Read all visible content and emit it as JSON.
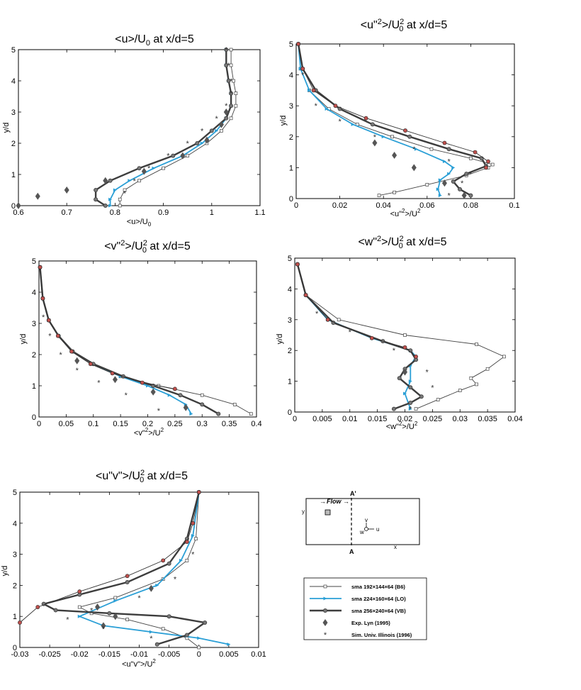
{
  "legend": {
    "entries": [
      {
        "name": "sma 192×144×64 (B6)",
        "series": "B6"
      },
      {
        "name": "sma 224×160×64 (LO)",
        "series": "LO"
      },
      {
        "name": "sma 256×240×64 (VB)",
        "series": "VB"
      },
      {
        "name": "Exp. Lyn (1995)",
        "series": "Lyn"
      },
      {
        "name": "Sim. Univ. Illinois (1996)",
        "series": "UIUC"
      }
    ]
  },
  "schematic": {
    "label_a_top": "A'",
    "label_a_bottom": "A",
    "flow_label": "Flow",
    "label_x": "x",
    "label_y": "y",
    "label_u": "u",
    "label_v": "v",
    "label_w": "w"
  },
  "colors": {
    "B6": "#444444",
    "LO": "#2a9fd6",
    "VB": "#3d3d3d",
    "Lyn": "#555555",
    "UIUC": "#333333",
    "red_marker": "#c0504d"
  },
  "chart_data": [
    {
      "id": "u_mean",
      "type": "line",
      "title": "<u>/U0 at x/d=5",
      "xlabel": "<u>/U0",
      "ylabel": "y/d",
      "xlim": [
        0.6,
        1.1
      ],
      "ylim": [
        0,
        5
      ],
      "xticks": [
        0.6,
        0.7,
        0.8,
        0.9,
        1,
        1.1
      ],
      "xtick_labels": [
        "0.6",
        "0.7",
        "0.8",
        "0.9",
        "1",
        "1.1"
      ],
      "yticks": [
        0,
        1,
        2,
        3,
        4,
        5
      ],
      "series": [
        {
          "key": "B6",
          "x": [
            0.81,
            0.81,
            0.82,
            0.85,
            0.9,
            0.95,
            0.99,
            1.02,
            1.04,
            1.05,
            1.05,
            1.045,
            1.04,
            1.04
          ],
          "y": [
            0,
            0.2,
            0.5,
            0.8,
            1.2,
            1.6,
            2.0,
            2.4,
            2.8,
            3.2,
            3.6,
            4.0,
            4.5,
            5.0
          ]
        },
        {
          "key": "LO",
          "x": [
            0.79,
            0.79,
            0.8,
            0.83,
            0.88,
            0.94,
            0.98,
            1.01,
            1.03,
            1.04,
            1.04,
            1.035,
            1.03,
            1.03
          ],
          "y": [
            0,
            0.2,
            0.5,
            0.8,
            1.2,
            1.6,
            2.0,
            2.4,
            2.8,
            3.2,
            3.6,
            4.0,
            4.5,
            5.0
          ]
        },
        {
          "key": "VB",
          "x": [
            0.78,
            0.76,
            0.76,
            0.79,
            0.85,
            0.92,
            0.97,
            1.0,
            1.03,
            1.04,
            1.04,
            1.035,
            1.03,
            1.03
          ],
          "y": [
            0,
            0.2,
            0.5,
            0.8,
            1.2,
            1.6,
            2.0,
            2.4,
            2.8,
            3.2,
            3.6,
            4.0,
            4.5,
            5.0
          ]
        },
        {
          "key": "Lyn",
          "x": [
            0.6,
            0.64,
            0.7,
            0.78,
            0.86,
            0.94,
            0.99,
            1.02,
            1.03
          ],
          "y": [
            0,
            0.3,
            0.5,
            0.8,
            1.1,
            1.6,
            2.1,
            2.6,
            3.0
          ]
        },
        {
          "key": "UIUC",
          "x": [
            0.82,
            0.84,
            0.87,
            0.91,
            0.95,
            0.98,
            1.01,
            1.03,
            1.04,
            1.04,
            1.035,
            1.03
          ],
          "y": [
            0.4,
            0.8,
            1.2,
            1.6,
            2.0,
            2.4,
            2.8,
            3.2,
            3.6,
            4.0,
            4.5,
            5.0
          ]
        }
      ]
    },
    {
      "id": "uu",
      "type": "line",
      "title": "<u\"2>/U0^2 at x/d=5",
      "xlabel": "<u\"2>/U^2",
      "ylabel": "y/d",
      "xlim": [
        0,
        0.1
      ],
      "ylim": [
        0,
        5
      ],
      "xticks": [
        0,
        0.02,
        0.04,
        0.06,
        0.08,
        0.1
      ],
      "xtick_labels": [
        "0",
        "0.02",
        "0.04",
        "0.06",
        "0.08",
        "0.1"
      ],
      "yticks": [
        0,
        1,
        2,
        3,
        4,
        5
      ],
      "series": [
        {
          "key": "B6",
          "x": [
            0.038,
            0.045,
            0.06,
            0.078,
            0.088,
            0.09,
            0.08,
            0.062,
            0.044,
            0.028,
            0.015,
            0.006,
            0.002,
            0.001
          ],
          "y": [
            0.1,
            0.2,
            0.45,
            0.75,
            1.0,
            1.1,
            1.3,
            1.6,
            2.0,
            2.4,
            2.9,
            3.5,
            4.2,
            5.0
          ]
        },
        {
          "key": "LO",
          "x": [
            0.066,
            0.065,
            0.066,
            0.07,
            0.072,
            0.068,
            0.055,
            0.04,
            0.026,
            0.014,
            0.006,
            0.002,
            0.001
          ],
          "y": [
            0.1,
            0.3,
            0.6,
            0.8,
            1.0,
            1.2,
            1.6,
            2.0,
            2.4,
            2.9,
            3.5,
            4.2,
            5.0
          ]
        },
        {
          "key": "VB",
          "x": [
            0.08,
            0.075,
            0.072,
            0.078,
            0.087,
            0.085,
            0.07,
            0.052,
            0.035,
            0.02,
            0.009,
            0.003,
            0.001
          ],
          "y": [
            0.1,
            0.3,
            0.55,
            0.8,
            1.05,
            1.3,
            1.6,
            2.0,
            2.4,
            2.9,
            3.5,
            4.2,
            5.0
          ]
        },
        {
          "key": "red",
          "x": [
            0.087,
            0.088,
            0.082,
            0.068,
            0.05,
            0.032,
            0.018,
            0.008,
            0.003,
            0.001
          ],
          "y": [
            1.0,
            1.2,
            1.5,
            1.8,
            2.2,
            2.6,
            3.0,
            3.5,
            4.2,
            5.0
          ]
        },
        {
          "key": "Lyn",
          "x": [
            0.077,
            0.068,
            0.054,
            0.045,
            0.036
          ],
          "y": [
            0.1,
            0.5,
            1.0,
            1.4,
            1.8
          ]
        },
        {
          "key": "UIUC",
          "x": [
            0.07,
            0.076,
            0.08,
            0.07,
            0.054,
            0.036,
            0.02,
            0.009,
            0.003
          ],
          "y": [
            0.1,
            0.5,
            0.8,
            1.2,
            1.6,
            2.0,
            2.5,
            3.0,
            4.0
          ]
        }
      ]
    },
    {
      "id": "vv",
      "type": "line",
      "title": "<v\"2>/U0^2 at x/d=5",
      "xlabel": "<v\"2>/U^2",
      "ylabel": "y/d",
      "xlim": [
        0,
        0.4
      ],
      "ylim": [
        0,
        5
      ],
      "xticks": [
        0,
        0.05,
        0.1,
        0.15,
        0.2,
        0.25,
        0.3,
        0.35,
        0.4
      ],
      "xtick_labels": [
        "0",
        "0.05",
        "0.1",
        "0.15",
        "0.2",
        "0.25",
        "0.3",
        "0.35",
        "0.4"
      ],
      "yticks": [
        0,
        1,
        2,
        3,
        4,
        5
      ],
      "series": [
        {
          "key": "B6",
          "x": [
            0.39,
            0.36,
            0.3,
            0.22,
            0.15,
            0.095,
            0.06,
            0.035,
            0.018,
            0.007,
            0.002
          ],
          "y": [
            0.1,
            0.4,
            0.7,
            1.0,
            1.3,
            1.7,
            2.1,
            2.6,
            3.1,
            3.8,
            4.8
          ]
        },
        {
          "key": "LO",
          "x": [
            0.28,
            0.27,
            0.24,
            0.2,
            0.15,
            0.1,
            0.062,
            0.036,
            0.018,
            0.007,
            0.002
          ],
          "y": [
            0.1,
            0.4,
            0.7,
            1.0,
            1.3,
            1.7,
            2.1,
            2.6,
            3.1,
            3.8,
            4.8
          ]
        },
        {
          "key": "VB",
          "x": [
            0.33,
            0.3,
            0.26,
            0.21,
            0.155,
            0.1,
            0.062,
            0.036,
            0.018,
            0.007,
            0.002
          ],
          "y": [
            0.1,
            0.4,
            0.7,
            1.0,
            1.3,
            1.7,
            2.1,
            2.6,
            3.1,
            3.8,
            4.8
          ]
        },
        {
          "key": "red",
          "x": [
            0.25,
            0.19,
            0.135,
            0.095,
            0.06,
            0.035,
            0.018,
            0.007,
            0.002
          ],
          "y": [
            0.9,
            1.1,
            1.4,
            1.7,
            2.1,
            2.6,
            3.1,
            3.8,
            4.8
          ]
        },
        {
          "key": "Lyn",
          "x": [
            0.27,
            0.21,
            0.14,
            0.07
          ],
          "y": [
            0.3,
            0.8,
            1.2,
            1.8
          ]
        },
        {
          "key": "UIUC",
          "x": [
            0.22,
            0.16,
            0.11,
            0.07,
            0.04,
            0.02,
            0.008
          ],
          "y": [
            0.2,
            0.7,
            1.1,
            1.5,
            2.0,
            2.6,
            3.2
          ]
        }
      ]
    },
    {
      "id": "ww",
      "type": "line",
      "title": "<w\"2>/U0^2 at x/d=5",
      "xlabel": "<w\"2>/U^2",
      "ylabel": "y/d",
      "xlim": [
        0,
        0.04
      ],
      "ylim": [
        0,
        5
      ],
      "xticks": [
        0,
        0.005,
        0.01,
        0.015,
        0.02,
        0.025,
        0.03,
        0.035,
        0.04
      ],
      "xtick_labels": [
        "0",
        "0.005",
        "0.01",
        "0.015",
        "0.02",
        "0.025",
        "0.03",
        "0.035",
        "0.04"
      ],
      "yticks": [
        0,
        1,
        2,
        3,
        4,
        5
      ],
      "series": [
        {
          "key": "B6",
          "x": [
            0.022,
            0.026,
            0.03,
            0.033,
            0.032,
            0.035,
            0.038,
            0.033,
            0.02,
            0.008,
            0.002,
            0.0005
          ],
          "y": [
            0.1,
            0.4,
            0.7,
            0.9,
            1.1,
            1.4,
            1.8,
            2.2,
            2.5,
            3.0,
            3.8,
            4.8
          ]
        },
        {
          "key": "LO",
          "x": [
            0.021,
            0.02,
            0.021,
            0.021,
            0.022,
            0.021,
            0.014,
            0.006,
            0.002,
            0.0005
          ],
          "y": [
            0.1,
            0.6,
            1.0,
            1.5,
            1.8,
            2.0,
            2.4,
            3.0,
            3.8,
            4.8
          ]
        },
        {
          "key": "VB",
          "x": [
            0.018,
            0.021,
            0.023,
            0.021,
            0.019,
            0.02,
            0.022,
            0.021,
            0.016,
            0.007,
            0.002,
            0.0005
          ],
          "y": [
            0.1,
            0.3,
            0.5,
            0.8,
            1.1,
            1.4,
            1.7,
            2.0,
            2.3,
            2.9,
            3.8,
            4.8
          ]
        },
        {
          "key": "red",
          "x": [
            0.022,
            0.02,
            0.014,
            0.006,
            0.002,
            0.0005
          ],
          "y": [
            1.8,
            2.1,
            2.4,
            3.0,
            3.8,
            4.8
          ]
        },
        {
          "key": "Lyn",
          "x": [
            0.02
          ],
          "y": [
            1.3
          ]
        },
        {
          "key": "UIUC",
          "x": [
            0.021,
            0.025,
            0.024,
            0.018,
            0.01,
            0.004
          ],
          "y": [
            0.1,
            0.8,
            1.3,
            2.0,
            2.6,
            3.2
          ]
        }
      ]
    },
    {
      "id": "uv",
      "type": "line",
      "title": "<u\"v\">/U0^2 at x/d=5",
      "xlabel": "<u\"v\">/U^2",
      "ylabel": "y/d",
      "xlim": [
        -0.03,
        0.01
      ],
      "ylim": [
        0,
        5
      ],
      "xticks": [
        -0.03,
        -0.025,
        -0.02,
        -0.015,
        -0.01,
        -0.005,
        0,
        0.005,
        0.01
      ],
      "xtick_labels": [
        "-0.03",
        "-0.025",
        "-0.02",
        "-0.015",
        "-0.01",
        "-0.005",
        "0",
        "0.005",
        "0.01"
      ],
      "yticks": [
        0,
        1,
        2,
        3,
        4,
        5
      ],
      "series": [
        {
          "key": "B6",
          "x": [
            0.0,
            -0.002,
            -0.006,
            -0.012,
            -0.018,
            -0.02,
            -0.014,
            -0.006,
            -0.002,
            -0.0005,
            0.0
          ],
          "y": [
            0.0,
            0.3,
            0.6,
            0.9,
            1.1,
            1.3,
            1.6,
            2.2,
            2.8,
            3.5,
            5.0
          ]
        },
        {
          "key": "LO",
          "x": [
            0.005,
            0.0,
            -0.008,
            -0.016,
            -0.02,
            -0.014,
            -0.007,
            -0.003,
            -0.001,
            0.0
          ],
          "y": [
            0.1,
            0.3,
            0.5,
            0.7,
            1.0,
            1.5,
            2.0,
            2.8,
            3.6,
            5.0
          ]
        },
        {
          "key": "VB",
          "x": [
            -0.007,
            -0.002,
            0.001,
            -0.005,
            -0.015,
            -0.024,
            -0.026,
            -0.02,
            -0.012,
            -0.005,
            -0.002,
            0.0
          ],
          "y": [
            0.1,
            0.4,
            0.8,
            1.0,
            1.1,
            1.2,
            1.4,
            1.7,
            2.1,
            2.7,
            3.5,
            5.0
          ]
        },
        {
          "key": "red",
          "x": [
            -0.03,
            -0.027,
            -0.02,
            -0.012,
            -0.006,
            -0.002,
            -0.001,
            0.0
          ],
          "y": [
            0.8,
            1.3,
            1.8,
            2.3,
            2.8,
            3.4,
            4.0,
            5.0
          ]
        },
        {
          "key": "Lyn",
          "x": [
            -0.016,
            -0.014,
            -0.017,
            -0.008
          ],
          "y": [
            0.7,
            1.0,
            1.3,
            1.9
          ]
        },
        {
          "key": "UIUC",
          "x": [
            -0.008,
            -0.016,
            -0.022,
            -0.018,
            -0.01,
            -0.004,
            -0.001
          ],
          "y": [
            0.3,
            0.6,
            0.9,
            1.2,
            1.6,
            2.2,
            3.0
          ]
        }
      ]
    }
  ]
}
